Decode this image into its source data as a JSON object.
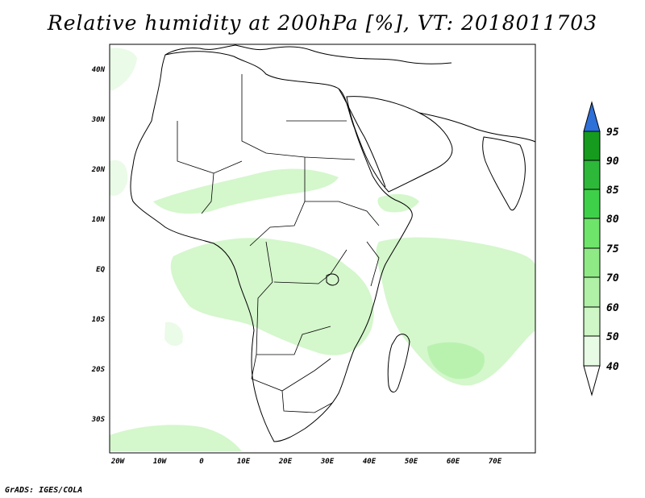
{
  "title": "Relative humidity at 200hPa [%], VT: 2018011703",
  "footer": "GrADS: IGES/COLA",
  "map": {
    "lon_ticks": [
      "20W",
      "10W",
      "0",
      "10E",
      "20E",
      "30E",
      "40E",
      "50E",
      "60E",
      "70E"
    ],
    "lat_ticks": [
      "40N",
      "30N",
      "20N",
      "10N",
      "EQ",
      "10S",
      "20S",
      "30S"
    ]
  },
  "colorbar": {
    "levels": [
      "95",
      "90",
      "85",
      "80",
      "75",
      "70",
      "60",
      "50",
      "40"
    ],
    "colors": [
      "#2e6fd8",
      "#169b1e",
      "#2db83a",
      "#3fd04a",
      "#6ee46a",
      "#8fea86",
      "#b1f0a7",
      "#cff6c6",
      "#e8fbe4",
      "#ffffff"
    ]
  }
}
